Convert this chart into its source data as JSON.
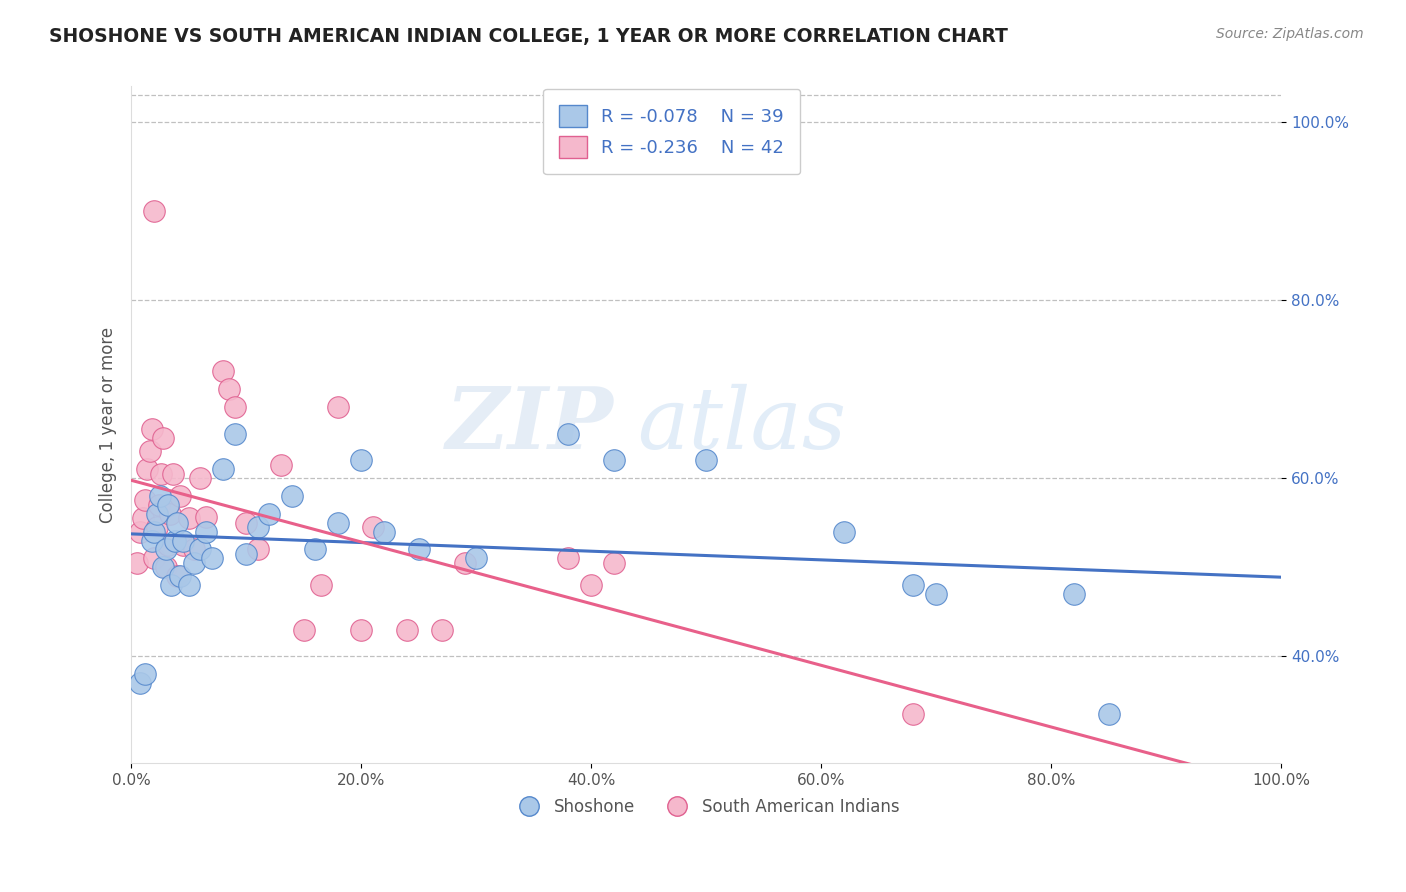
{
  "title": "SHOSHONE VS SOUTH AMERICAN INDIAN COLLEGE, 1 YEAR OR MORE CORRELATION CHART",
  "source": "Source: ZipAtlas.com",
  "ylabel": "College, 1 year or more",
  "xlim": [
    0.0,
    1.0
  ],
  "ylim": [
    0.28,
    1.04
  ],
  "ytick_labels": [
    "40.0%",
    "60.0%",
    "80.0%",
    "100.0%"
  ],
  "ytick_values": [
    0.4,
    0.6,
    0.8,
    1.0
  ],
  "xtick_labels": [
    "0.0%",
    "20.0%",
    "40.0%",
    "60.0%",
    "80.0%",
    "100.0%"
  ],
  "xtick_values": [
    0.0,
    0.2,
    0.4,
    0.6,
    0.8,
    1.0
  ],
  "watermark_left": "ZIP",
  "watermark_right": "atlas",
  "legend_r1": "R = -0.078",
  "legend_n1": "N = 39",
  "legend_r2": "R = -0.236",
  "legend_n2": "N = 42",
  "shoshone_color": "#aac8e8",
  "shoshone_edge_color": "#5588cc",
  "shoshone_line_color": "#4472c4",
  "sai_color": "#f5b8cc",
  "sai_edge_color": "#e06090",
  "sai_line_color": "#e8608a",
  "background_color": "#ffffff",
  "grid_color": "#c0c0c0",
  "shoshone_x": [
    0.008,
    0.012,
    0.018,
    0.02,
    0.022,
    0.025,
    0.028,
    0.03,
    0.032,
    0.035,
    0.038,
    0.04,
    0.042,
    0.045,
    0.05,
    0.055,
    0.06,
    0.065,
    0.07,
    0.08,
    0.09,
    0.1,
    0.11,
    0.12,
    0.14,
    0.16,
    0.18,
    0.2,
    0.22,
    0.25,
    0.3,
    0.38,
    0.42,
    0.5,
    0.62,
    0.68,
    0.7,
    0.82,
    0.85
  ],
  "shoshone_y": [
    0.37,
    0.38,
    0.53,
    0.54,
    0.56,
    0.58,
    0.5,
    0.52,
    0.57,
    0.48,
    0.53,
    0.55,
    0.49,
    0.53,
    0.48,
    0.505,
    0.52,
    0.54,
    0.51,
    0.61,
    0.65,
    0.515,
    0.545,
    0.56,
    0.58,
    0.52,
    0.55,
    0.62,
    0.54,
    0.52,
    0.51,
    0.65,
    0.62,
    0.62,
    0.54,
    0.48,
    0.47,
    0.47,
    0.335
  ],
  "sai_x": [
    0.005,
    0.008,
    0.01,
    0.012,
    0.014,
    0.016,
    0.018,
    0.02,
    0.022,
    0.024,
    0.026,
    0.028,
    0.03,
    0.032,
    0.034,
    0.036,
    0.04,
    0.042,
    0.045,
    0.05,
    0.055,
    0.06,
    0.065,
    0.08,
    0.085,
    0.09,
    0.1,
    0.11,
    0.13,
    0.15,
    0.165,
    0.18,
    0.2,
    0.21,
    0.24,
    0.27,
    0.29,
    0.38,
    0.4,
    0.42,
    0.68,
    0.02
  ],
  "sai_y": [
    0.505,
    0.54,
    0.555,
    0.575,
    0.61,
    0.63,
    0.655,
    0.51,
    0.545,
    0.57,
    0.605,
    0.645,
    0.5,
    0.525,
    0.56,
    0.605,
    0.49,
    0.58,
    0.525,
    0.555,
    0.52,
    0.6,
    0.556,
    0.72,
    0.7,
    0.68,
    0.55,
    0.52,
    0.615,
    0.43,
    0.48,
    0.68,
    0.43,
    0.545,
    0.43,
    0.43,
    0.505,
    0.51,
    0.48,
    0.505,
    0.335,
    0.9
  ]
}
